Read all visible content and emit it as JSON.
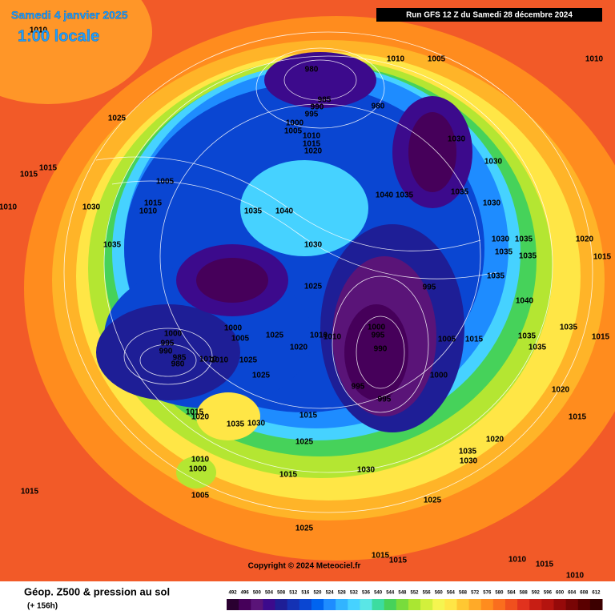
{
  "header": {
    "date": "Samedi 4 janvier 2025",
    "time": "1:00 locale",
    "run": "Run GFS 12 Z du Samedi 28 décembre 2024"
  },
  "footer": {
    "title": "Géop. Z500 & pression au sol",
    "lead": "(+ 156h)",
    "copyright": "Copyright © 2024 Meteociel.fr"
  },
  "pressure_labels": [
    1010,
    980,
    1010,
    1005,
    1010,
    985,
    990,
    995,
    980,
    1025,
    1000,
    1005,
    1010,
    1015,
    1020,
    1030,
    1015,
    1015,
    1030,
    1005,
    1040,
    1035,
    1035,
    1015,
    1010,
    1030,
    1010,
    1035,
    1040,
    1030,
    1035,
    1030,
    1030,
    1035,
    1020,
    1035,
    1035,
    1015,
    1035,
    1025,
    995,
    1040,
    1000,
    1000,
    1005,
    1025,
    1010,
    1010,
    1000,
    995,
    1005,
    1015,
    1035,
    1035,
    1015,
    995,
    990,
    1020,
    990,
    1035,
    985,
    1010,
    1010,
    1025,
    980,
    1025,
    1000,
    995,
    995,
    1020,
    1015,
    1020,
    1015,
    1035,
    1030,
    1015,
    1020,
    1025,
    1035,
    1010,
    1030,
    1000,
    1030,
    1015,
    1015,
    1005,
    1025,
    1025,
    1015,
    1015,
    1010,
    1015,
    1010
  ],
  "legend": {
    "ticks": [
      492,
      496,
      500,
      504,
      508,
      512,
      516,
      520,
      524,
      528,
      532,
      536,
      540,
      544,
      548,
      552,
      556,
      560,
      564,
      568,
      572,
      576,
      580,
      584,
      588,
      592,
      596,
      600,
      604,
      608,
      612
    ],
    "colors": [
      "#2a0030",
      "#46005a",
      "#5a1478",
      "#3c0a8c",
      "#1e1e96",
      "#1432b4",
      "#0a46d2",
      "#0064f0",
      "#1e8cff",
      "#32b4ff",
      "#46d2ff",
      "#5ae6e6",
      "#3cdca0",
      "#46d25a",
      "#78dc3c",
      "#aae632",
      "#d2f03c",
      "#f5f550",
      "#ffe646",
      "#ffc832",
      "#ffaa28",
      "#ff8c1e",
      "#fa6e1e",
      "#f0501e",
      "#e1321e",
      "#c81e14",
      "#b4140f",
      "#960a0a",
      "#780505",
      "#5a0000",
      "#3c0000"
    ]
  }
}
